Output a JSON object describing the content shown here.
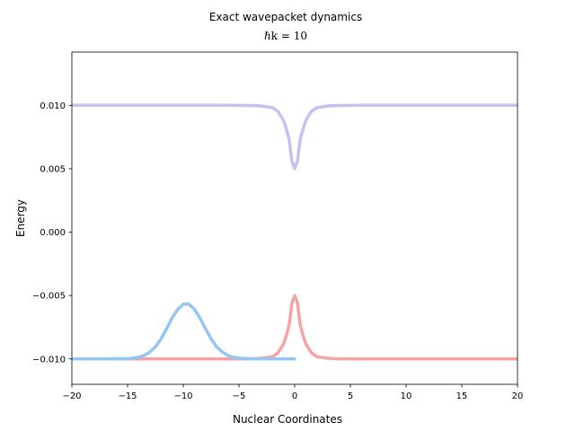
{
  "chart_data": {
    "type": "line",
    "title": "Exact wavepacket dynamics",
    "subtitle": "ℏk = 10",
    "xlabel": "Nuclear Coordinates",
    "ylabel": "Energy",
    "xlim": [
      -20,
      20
    ],
    "ylim": [
      -0.012,
      0.0142
    ],
    "xticks": [
      -20,
      -15,
      -10,
      -5,
      0,
      5,
      10,
      15,
      20
    ],
    "xtick_labels": [
      "−20",
      "−15",
      "−10",
      "−5",
      "0",
      "5",
      "10",
      "15",
      "20"
    ],
    "yticks": [
      -0.01,
      -0.005,
      0.0,
      0.005,
      0.01
    ],
    "ytick_labels": [
      "−0.010",
      "−0.005",
      "0.000",
      "0.005",
      "0.010"
    ],
    "grid": false,
    "legend": "none",
    "series": [
      {
        "color": "#c9bff2",
        "x": [
          -20,
          -10,
          -6,
          -4,
          -3,
          -2,
          -1.5,
          -1,
          -0.75,
          -0.5,
          -0.25,
          0,
          0.25,
          0.5,
          0.75,
          1,
          1.5,
          2,
          3,
          4,
          6,
          10,
          20
        ],
        "y": [
          0.01,
          0.01,
          0.01,
          0.00999,
          0.00995,
          0.00982,
          0.00952,
          0.00881,
          0.00815,
          0.00734,
          0.00559,
          0.00501,
          0.00559,
          0.00734,
          0.00815,
          0.00881,
          0.00952,
          0.00982,
          0.00995,
          0.00999,
          0.01,
          0.01,
          0.01
        ]
      },
      {
        "color": "#f4a4a4",
        "x": [
          -20,
          -10,
          -6,
          -4,
          -3,
          -2,
          -1.5,
          -1,
          -0.75,
          -0.5,
          -0.25,
          0,
          0.25,
          0.5,
          0.75,
          1,
          1.5,
          2,
          3,
          4,
          6,
          10,
          20
        ],
        "y": [
          -0.01,
          -0.01,
          -0.01,
          -0.00999,
          -0.00995,
          -0.00982,
          -0.00952,
          -0.00881,
          -0.00815,
          -0.00734,
          -0.00559,
          -0.00501,
          -0.00559,
          -0.00734,
          -0.00815,
          -0.00881,
          -0.00952,
          -0.00982,
          -0.00995,
          -0.00999,
          -0.01,
          -0.01,
          -0.01
        ]
      },
      {
        "color": "#93c6f5",
        "x": [
          -20,
          -15,
          -14,
          -13.5,
          -13,
          -12.5,
          -12,
          -11.5,
          -11,
          -10.5,
          -10,
          -9.5,
          -9,
          -8.5,
          -8,
          -7.5,
          -7,
          -6.5,
          -6,
          -5.5,
          -5,
          -4,
          0
        ],
        "y": [
          -0.01,
          -0.00998,
          -0.00987,
          -0.00972,
          -0.00946,
          -0.00905,
          -0.00842,
          -0.00762,
          -0.00677,
          -0.00607,
          -0.00568,
          -0.00568,
          -0.00607,
          -0.00677,
          -0.00762,
          -0.00842,
          -0.00905,
          -0.00946,
          -0.00972,
          -0.00987,
          -0.00994,
          -0.00999,
          -0.01
        ]
      }
    ]
  }
}
